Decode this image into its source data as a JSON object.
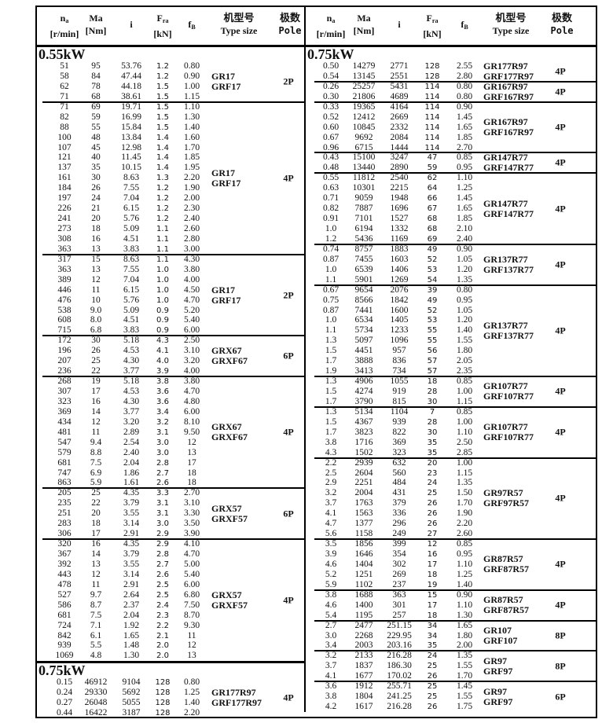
{
  "header": {
    "na": {
      "main": "n",
      "sub": "a",
      "unit": "[r/min]"
    },
    "ma": {
      "main": "Ma",
      "unit": "[Nm]"
    },
    "i": {
      "main": "i"
    },
    "fra": {
      "main": "F",
      "sub": "ra",
      "unit": "[kN]"
    },
    "fb": {
      "main": "f",
      "sub": "B"
    },
    "type": {
      "cn": "机型号",
      "en": "Type size"
    },
    "pole": {
      "cn": "极数",
      "en": "Pole"
    }
  },
  "left": {
    "items": [
      {
        "heading": "0.55kW"
      },
      {
        "type": [
          "GR17",
          "GRF17"
        ],
        "pole": "2P",
        "rows": [
          [
            "51",
            "95",
            "53.76",
            "1.2",
            "0.80"
          ],
          [
            "58",
            "84",
            "47.44",
            "1.2",
            "0.90"
          ],
          [
            "62",
            "78",
            "44.18",
            "1.5",
            "1.00"
          ],
          [
            "71",
            "68",
            "38.61",
            "1.5",
            "1.15"
          ]
        ]
      },
      {
        "type": [
          "GR17",
          "GRF17"
        ],
        "pole": "4P",
        "rows": [
          [
            "71",
            "69",
            "19.71",
            "1.5",
            "1.10"
          ],
          [
            "82",
            "59",
            "16.99",
            "1.5",
            "1.30"
          ],
          [
            "88",
            "55",
            "15.84",
            "1.5",
            "1.40"
          ],
          [
            "100",
            "48",
            "13.84",
            "1.4",
            "1.60"
          ],
          [
            "107",
            "45",
            "12.98",
            "1.4",
            "1.70"
          ],
          [
            "121",
            "40",
            "11.45",
            "1.4",
            "1.85"
          ],
          [
            "137",
            "35",
            "10.15",
            "1.4",
            "1.95"
          ],
          [
            "161",
            "30",
            "8.63",
            "1.3",
            "2.20"
          ],
          [
            "184",
            "26",
            "7.55",
            "1.2",
            "1.90"
          ],
          [
            "197",
            "24",
            "7.04",
            "1.2",
            "2.00"
          ],
          [
            "226",
            "21",
            "6.15",
            "1.2",
            "2.30"
          ],
          [
            "241",
            "20",
            "5.76",
            "1.2",
            "2.40"
          ],
          [
            "273",
            "18",
            "5.09",
            "1.1",
            "2.60"
          ],
          [
            "308",
            "16",
            "4.51",
            "1.1",
            "2.80"
          ],
          [
            "363",
            "13",
            "3.83",
            "1.1",
            "3.00"
          ]
        ]
      },
      {
        "type": [
          "GR17",
          "GRF17"
        ],
        "pole": "2P",
        "rows": [
          [
            "317",
            "15",
            "8.63",
            "1.1",
            "4.30"
          ],
          [
            "363",
            "13",
            "7.55",
            "1.0",
            "3.80"
          ],
          [
            "389",
            "12",
            "7.04",
            "1.0",
            "4.00"
          ],
          [
            "446",
            "11",
            "6.15",
            "1.0",
            "4.50"
          ],
          [
            "476",
            "10",
            "5.76",
            "1.0",
            "4.70"
          ],
          [
            "538",
            "9.0",
            "5.09",
            "0.9",
            "5.20"
          ],
          [
            "608",
            "8.0",
            "4.51",
            "0.9",
            "5.40"
          ],
          [
            "715",
            "6.8",
            "3.83",
            "0.9",
            "6.00"
          ]
        ]
      },
      {
        "type": [
          "GRX67",
          "GRXF67"
        ],
        "pole": "6P",
        "rows": [
          [
            "172",
            "30",
            "5.18",
            "4.3",
            "2.50"
          ],
          [
            "196",
            "26",
            "4.53",
            "4.1",
            "3.10"
          ],
          [
            "207",
            "25",
            "4.30",
            "4.0",
            "3.20"
          ],
          [
            "236",
            "22",
            "3.77",
            "3.9",
            "4.00"
          ]
        ]
      },
      {
        "type": [
          "GRX67",
          "GRXF67"
        ],
        "pole": "4P",
        "rows": [
          [
            "268",
            "19",
            "5.18",
            "3.8",
            "3.80"
          ],
          [
            "307",
            "17",
            "4.53",
            "3.6",
            "4.70"
          ],
          [
            "323",
            "16",
            "4.30",
            "3.6",
            "4.80"
          ],
          [
            "369",
            "14",
            "3.77",
            "3.4",
            "6.00"
          ],
          [
            "434",
            "12",
            "3.20",
            "3.2",
            "8.10"
          ],
          [
            "481",
            "11",
            "2.89",
            "3.1",
            "9.50"
          ],
          [
            "547",
            "9.4",
            "2.54",
            "3.0",
            "12"
          ],
          [
            "579",
            "8.8",
            "2.40",
            "3.0",
            "13"
          ],
          [
            "681",
            "7.5",
            "2.04",
            "2.8",
            "17"
          ],
          [
            "747",
            "6.9",
            "1.86",
            "2.7",
            "18"
          ],
          [
            "863",
            "5.9",
            "1.61",
            "2.6",
            "18"
          ]
        ]
      },
      {
        "type": [
          "GRX57",
          "GRXF57"
        ],
        "pole": "6P",
        "rows": [
          [
            "205",
            "25",
            "4.35",
            "3.3",
            "2.70"
          ],
          [
            "235",
            "22",
            "3.79",
            "3.1",
            "3.10"
          ],
          [
            "251",
            "20",
            "3.55",
            "3.1",
            "3.30"
          ],
          [
            "283",
            "18",
            "3.14",
            "3.0",
            "3.50"
          ],
          [
            "306",
            "17",
            "2.91",
            "2.9",
            "3.90"
          ]
        ]
      },
      {
        "type": [
          "GRX57",
          "GRXF57"
        ],
        "pole": "4P",
        "rows": [
          [
            "320",
            "16",
            "4.35",
            "2.9",
            "4.10"
          ],
          [
            "367",
            "14",
            "3.79",
            "2.8",
            "4.70"
          ],
          [
            "392",
            "13",
            "3.55",
            "2.7",
            "5.00"
          ],
          [
            "443",
            "12",
            "3.14",
            "2.6",
            "5.40"
          ],
          [
            "478",
            "11",
            "2.91",
            "2.5",
            "6.00"
          ],
          [
            "527",
            "9.7",
            "2.64",
            "2.5",
            "6.80"
          ],
          [
            "586",
            "8.7",
            "2.37",
            "2.4",
            "7.50"
          ],
          [
            "681",
            "7.5",
            "2.04",
            "2.3",
            "8.70"
          ],
          [
            "724",
            "7.1",
            "1.92",
            "2.2",
            "9.30"
          ],
          [
            "842",
            "6.1",
            "1.65",
            "2.1",
            "11"
          ],
          [
            "939",
            "5.5",
            "1.48",
            "2.0",
            "12"
          ],
          [
            "1069",
            "4.8",
            "1.30",
            "2.0",
            "13"
          ]
        ]
      },
      {
        "heading": "0.75kW"
      },
      {
        "type": [
          "GR177R97",
          "GRF177R97"
        ],
        "pole": "4P",
        "rows": [
          [
            "0.15",
            "46912",
            "9104",
            "128",
            "0.80"
          ],
          [
            "0.24",
            "29330",
            "5692",
            "128",
            "1.25"
          ],
          [
            "0.27",
            "26048",
            "5055",
            "128",
            "1.40"
          ],
          [
            "0.44",
            "16422",
            "3187",
            "128",
            "2.20"
          ]
        ]
      }
    ]
  },
  "right": {
    "items": [
      {
        "heading": "0.75kW"
      },
      {
        "type": [
          "GR177R97",
          "GRF177R97"
        ],
        "pole": "4P",
        "rows": [
          [
            "0.50",
            "14279",
            "2771",
            "128",
            "2.55"
          ],
          [
            "0.54",
            "13145",
            "2551",
            "128",
            "2.80"
          ]
        ]
      },
      {
        "type": [
          "GR167R97",
          "GRF167R97"
        ],
        "pole": "4P",
        "rows": [
          [
            "0.26",
            "25257",
            "5431",
            "114",
            "0.80"
          ],
          [
            "0.30",
            "21806",
            "4689",
            "114",
            "0.80"
          ]
        ]
      },
      {
        "type": [
          "GR167R97",
          "GRF167R97"
        ],
        "pole": "4P",
        "rows": [
          [
            "0.33",
            "19365",
            "4164",
            "114",
            "0.90"
          ],
          [
            "0.52",
            "12412",
            "2669",
            "114",
            "1.45"
          ],
          [
            "0.60",
            "10845",
            "2332",
            "114",
            "1.65"
          ],
          [
            "0.67",
            "9692",
            "2084",
            "114",
            "1.85"
          ],
          [
            "0.96",
            "6715",
            "1444",
            "114",
            "2.70"
          ]
        ]
      },
      {
        "type": [
          "GR147R77",
          "GRF147R77"
        ],
        "pole": "4P",
        "rows": [
          [
            "0.43",
            "15100",
            "3247",
            "47",
            "0.85"
          ],
          [
            "0.48",
            "13440",
            "2890",
            "59",
            "0.95"
          ]
        ]
      },
      {
        "type": [
          "GR147R77",
          "GRF147R77"
        ],
        "pole": "4P",
        "rows": [
          [
            "0.55",
            "11812",
            "2540",
            "62",
            "1.10"
          ],
          [
            "0.63",
            "10301",
            "2215",
            "64",
            "1.25"
          ],
          [
            "0.71",
            "9059",
            "1948",
            "66",
            "1.45"
          ],
          [
            "0.82",
            "7887",
            "1696",
            "67",
            "1.65"
          ],
          [
            "0.91",
            "7101",
            "1527",
            "68",
            "1.85"
          ],
          [
            "1.0",
            "6194",
            "1332",
            "68",
            "2.10"
          ],
          [
            "1.2",
            "5436",
            "1169",
            "69",
            "2.40"
          ]
        ]
      },
      {
        "type": [
          "GR137R77",
          "GRF137R77"
        ],
        "pole": "4P",
        "rows": [
          [
            "0.74",
            "8757",
            "1883",
            "49",
            "0.90"
          ],
          [
            "0.87",
            "7455",
            "1603",
            "52",
            "1.05"
          ],
          [
            "1.0",
            "6539",
            "1406",
            "53",
            "1.20"
          ],
          [
            "1.1",
            "5901",
            "1269",
            "54",
            "1.35"
          ]
        ]
      },
      {
        "type": [
          "GR137R77",
          "GRF137R77"
        ],
        "pole": "4P",
        "rows": [
          [
            "0.67",
            "9654",
            "2076",
            "39",
            "0.80"
          ],
          [
            "0.75",
            "8566",
            "1842",
            "49",
            "0.95"
          ],
          [
            "0.87",
            "7441",
            "1600",
            "52",
            "1.05"
          ],
          [
            "1.0",
            "6534",
            "1405",
            "53",
            "1.20"
          ],
          [
            "1.1",
            "5734",
            "1233",
            "55",
            "1.40"
          ],
          [
            "1.3",
            "5097",
            "1096",
            "55",
            "1.55"
          ],
          [
            "1.5",
            "4451",
            "957",
            "56",
            "1.80"
          ],
          [
            "1.7",
            "3888",
            "836",
            "57",
            "2.05"
          ],
          [
            "1.9",
            "3413",
            "734",
            "57",
            "2.35"
          ]
        ]
      },
      {
        "type": [
          "GR107R77",
          "GRF107R77"
        ],
        "pole": "4P",
        "rows": [
          [
            "1.3",
            "4906",
            "1055",
            "18",
            "0.85"
          ],
          [
            "1.5",
            "4274",
            "919",
            "28",
            "1.00"
          ],
          [
            "1.7",
            "3790",
            "815",
            "30",
            "1.15"
          ]
        ]
      },
      {
        "type": [
          "GR107R77",
          "GRF107R77"
        ],
        "pole": "4P",
        "rows": [
          [
            "1.3",
            "5134",
            "1104",
            "7",
            "0.85"
          ],
          [
            "1.5",
            "4367",
            "939",
            "28",
            "1.00"
          ],
          [
            "1.7",
            "3823",
            "822",
            "30",
            "1.10"
          ],
          [
            "3.8",
            "1716",
            "369",
            "35",
            "2.50"
          ],
          [
            "4.3",
            "1502",
            "323",
            "35",
            "2.85"
          ]
        ]
      },
      {
        "type": [
          "GR97R57",
          "GRF97R57"
        ],
        "pole": "4P",
        "rows": [
          [
            "2.2",
            "2939",
            "632",
            "20",
            "1.00"
          ],
          [
            "2.5",
            "2604",
            "560",
            "23",
            "1.15"
          ],
          [
            "2.9",
            "2251",
            "484",
            "24",
            "1.35"
          ],
          [
            "3.2",
            "2004",
            "431",
            "25",
            "1.50"
          ],
          [
            "3.7",
            "1763",
            "379",
            "26",
            "1.70"
          ],
          [
            "4.1",
            "1563",
            "336",
            "26",
            "1.90"
          ],
          [
            "4.7",
            "1377",
            "296",
            "26",
            "2.20"
          ],
          [
            "5.6",
            "1158",
            "249",
            "27",
            "2.60"
          ]
        ]
      },
      {
        "type": [
          "GR87R57",
          "GRF87R57"
        ],
        "pole": "4P",
        "rows": [
          [
            "3.5",
            "1856",
            "399",
            "12",
            "0.85"
          ],
          [
            "3.9",
            "1646",
            "354",
            "16",
            "0.95"
          ],
          [
            "4.6",
            "1404",
            "302",
            "17",
            "1.10"
          ],
          [
            "5.2",
            "1251",
            "269",
            "18",
            "1.25"
          ],
          [
            "5.9",
            "1102",
            "237",
            "19",
            "1.40"
          ]
        ]
      },
      {
        "type": [
          "GR87R57",
          "GRF87R57"
        ],
        "pole": "4P",
        "rows": [
          [
            "3.8",
            "1688",
            "363",
            "15",
            "0.90"
          ],
          [
            "4.6",
            "1400",
            "301",
            "17",
            "1.10"
          ],
          [
            "5.4",
            "1195",
            "257",
            "18",
            "1.30"
          ]
        ]
      },
      {
        "type": [
          "GR107",
          "GRF107"
        ],
        "pole": "8P",
        "rows": [
          [
            "2.7",
            "2477",
            "251.15",
            "34",
            "1.65"
          ],
          [
            "3.0",
            "2268",
            "229.95",
            "34",
            "1.80"
          ],
          [
            "3.4",
            "2003",
            "203.16",
            "35",
            "2.00"
          ]
        ]
      },
      {
        "type": [
          "GR97",
          "GRF97"
        ],
        "pole": "8P",
        "rows": [
          [
            "3.2",
            "2133",
            "216.28",
            "24",
            "1.35"
          ],
          [
            "3.7",
            "1837",
            "186.30",
            "25",
            "1.55"
          ],
          [
            "4.1",
            "1677",
            "170.02",
            "26",
            "1.70"
          ]
        ]
      },
      {
        "type": [
          "GR97",
          "GRF97"
        ],
        "pole": "6P",
        "rows": [
          [
            "3.6",
            "1912",
            "255.71",
            "25",
            "1.45"
          ],
          [
            "3.8",
            "1804",
            "241.25",
            "25",
            "1.55"
          ],
          [
            "4.2",
            "1617",
            "216.28",
            "26",
            "1.75"
          ]
        ]
      }
    ]
  }
}
